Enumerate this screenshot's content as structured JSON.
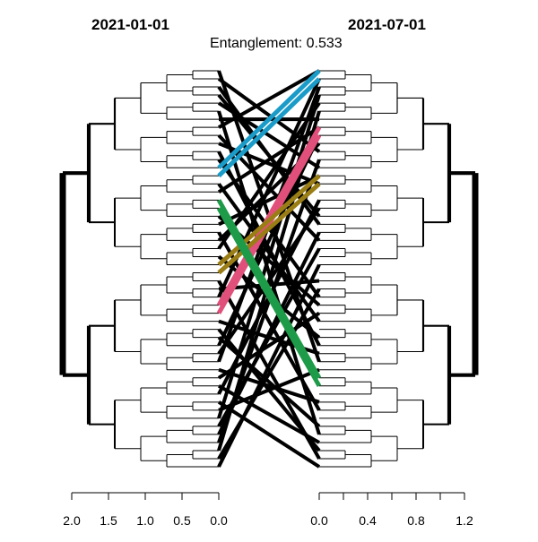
{
  "titles": {
    "left": "2021-01-01",
    "right": "2021-07-01",
    "subtitle": "Entanglement: 0.533"
  },
  "axes": {
    "left": {
      "ticks": [
        "2.0",
        "1.5",
        "1.0",
        "0.5",
        "0.0"
      ],
      "range": [
        2.0,
        0.0
      ]
    },
    "right": {
      "ticks": [
        "0.0",
        "0.4",
        "0.8",
        "1.2"
      ],
      "range": [
        0.0,
        1.2
      ]
    }
  },
  "leaf_count": 50,
  "colors": {
    "black": "#000000",
    "blue": "#1a9bc8",
    "pink": "#e0507a",
    "olive": "#9a7d15",
    "green": "#1e9b48"
  },
  "highlight_links": [
    {
      "color_key": "blue",
      "left_leaf": 12,
      "right_leaf": 0
    },
    {
      "color_key": "blue",
      "left_leaf": 13,
      "right_leaf": 1
    },
    {
      "color_key": "pink",
      "left_leaf": 29,
      "right_leaf": 7
    },
    {
      "color_key": "pink",
      "left_leaf": 30,
      "right_leaf": 8
    },
    {
      "color_key": "olive",
      "left_leaf": 24,
      "right_leaf": 13
    },
    {
      "color_key": "olive",
      "left_leaf": 25,
      "right_leaf": 14
    },
    {
      "color_key": "green",
      "left_leaf": 16,
      "right_leaf": 38
    },
    {
      "color_key": "green",
      "left_leaf": 17,
      "right_leaf": 39
    }
  ]
}
